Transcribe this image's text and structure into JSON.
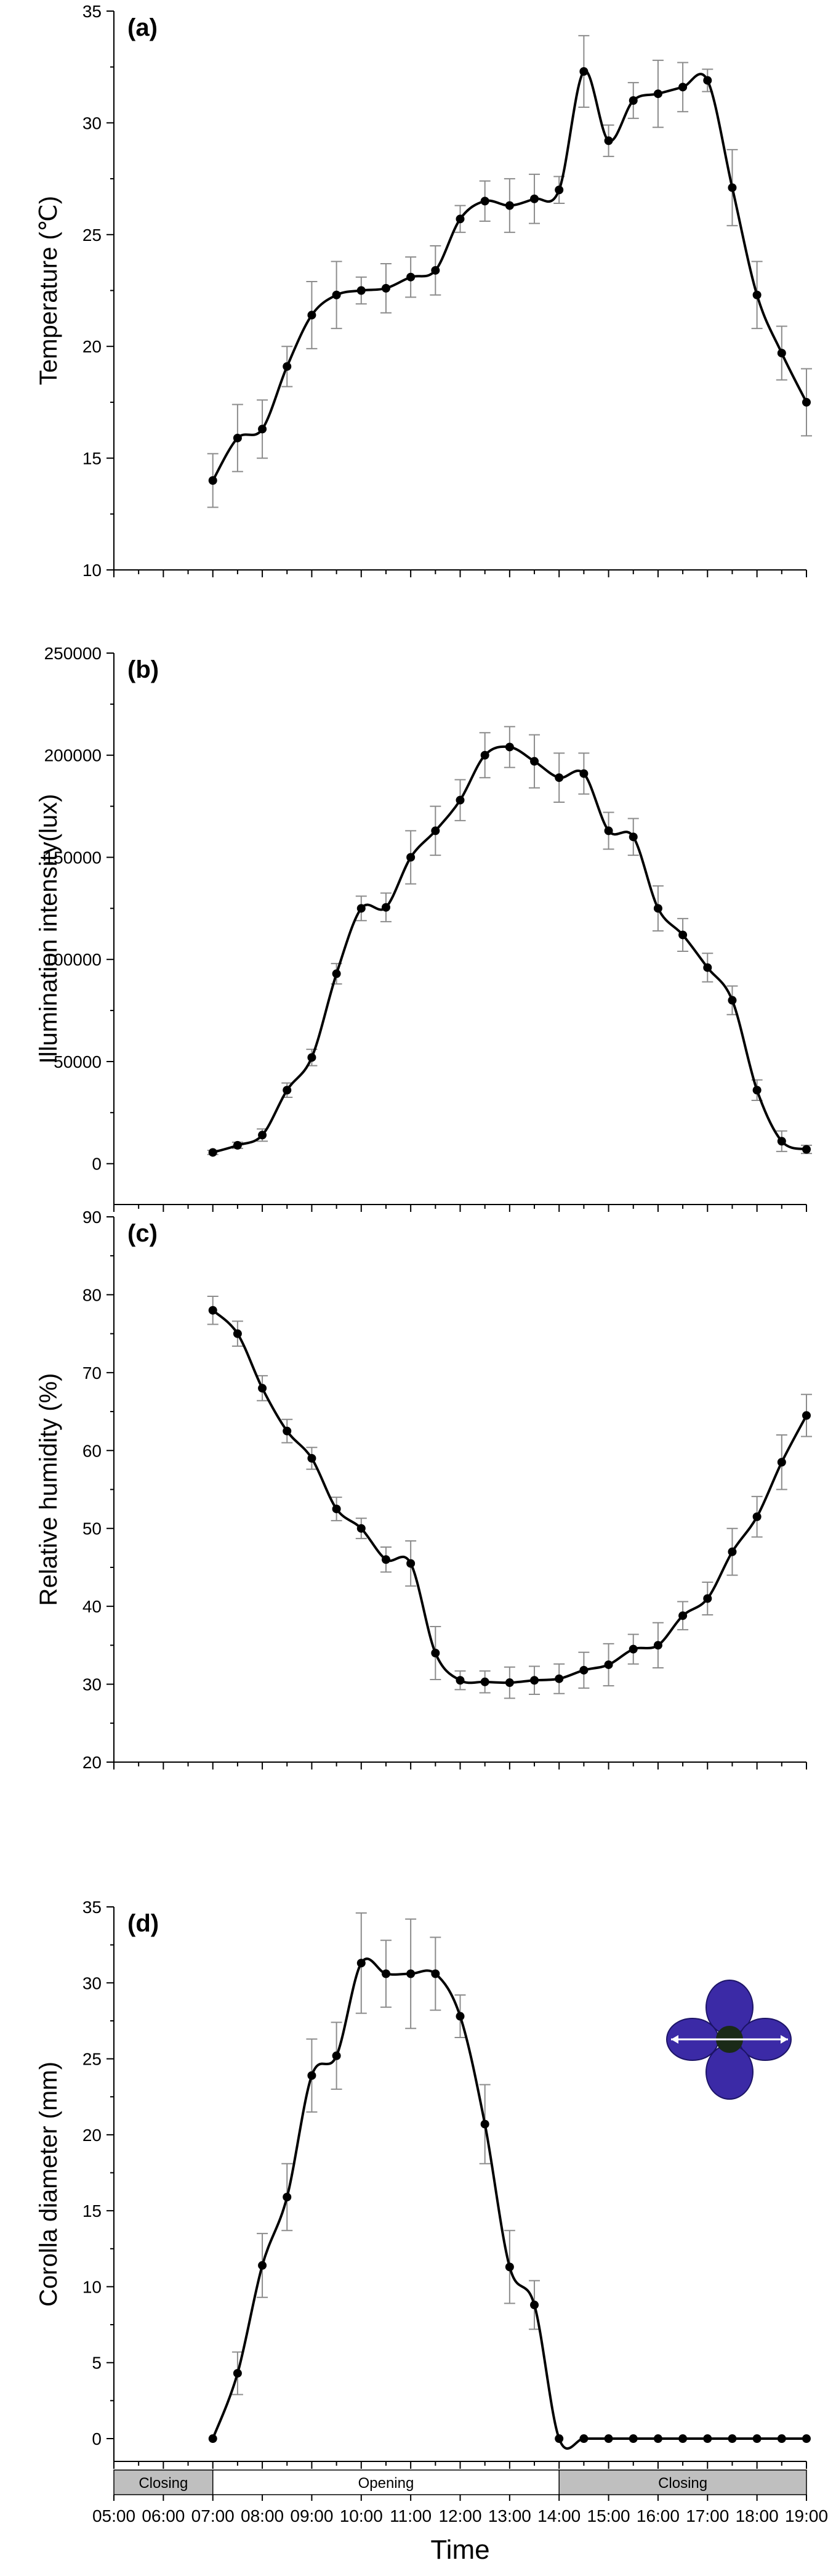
{
  "chart_data": [
    {
      "type": "line",
      "panel_label": "(a)",
      "ylabel": "Temperature (℃)",
      "ylim": [
        10,
        35
      ],
      "yticks": [
        10,
        15,
        20,
        25,
        30,
        35
      ],
      "xlim": [
        "05:00",
        "19:00"
      ],
      "x": [
        "07:00",
        "07:30",
        "08:00",
        "08:30",
        "09:00",
        "09:30",
        "10:00",
        "10:30",
        "11:00",
        "11:30",
        "12:00",
        "12:30",
        "13:00",
        "13:30",
        "14:00",
        "14:30",
        "15:00",
        "15:30",
        "16:00",
        "16:30",
        "17:00",
        "17:30",
        "18:00",
        "18:30",
        "19:00"
      ],
      "series": [
        {
          "values": [
            14.0,
            15.9,
            16.3,
            19.1,
            21.4,
            22.3,
            22.5,
            22.6,
            23.1,
            23.4,
            25.7,
            26.5,
            26.3,
            26.6,
            27.0,
            32.3,
            29.2,
            31.0,
            31.3,
            31.6,
            31.9,
            27.1,
            22.3,
            19.7,
            17.5
          ],
          "errors": [
            1.2,
            1.5,
            1.3,
            0.9,
            1.5,
            1.5,
            0.6,
            1.1,
            0.9,
            1.1,
            0.6,
            0.9,
            1.2,
            1.1,
            0.6,
            1.6,
            0.7,
            0.8,
            1.5,
            1.1,
            0.5,
            1.7,
            1.5,
            1.2,
            1.5
          ]
        }
      ],
      "grid": false
    },
    {
      "type": "line",
      "panel_label": "(b)",
      "ylabel": "Illumination intensity(lux)",
      "ylim": [
        -20000,
        250000
      ],
      "yticks": [
        0,
        50000,
        100000,
        150000,
        200000,
        250000
      ],
      "xlim": [
        "05:00",
        "19:00"
      ],
      "x": [
        "07:00",
        "07:30",
        "08:00",
        "08:30",
        "09:00",
        "09:30",
        "10:00",
        "10:30",
        "11:00",
        "11:30",
        "12:00",
        "12:30",
        "13:00",
        "13:30",
        "14:00",
        "14:30",
        "15:00",
        "15:30",
        "16:00",
        "16:30",
        "17:00",
        "17:30",
        "18:00",
        "18:30",
        "19:00"
      ],
      "series": [
        {
          "values": [
            5500,
            9000,
            14000,
            36000,
            52000,
            93000,
            125000,
            125500,
            150000,
            163000,
            178000,
            200000,
            204000,
            197000,
            189000,
            191000,
            163000,
            160000,
            125000,
            112000,
            96000,
            80000,
            36000,
            11000,
            7000
          ],
          "errors": [
            1000,
            1500,
            3000,
            3500,
            4000,
            5000,
            6000,
            7000,
            13000,
            12000,
            10000,
            11000,
            10000,
            13000,
            12000,
            10000,
            9000,
            9000,
            11000,
            8000,
            7000,
            7000,
            5000,
            5000,
            2000
          ]
        }
      ],
      "grid": false
    },
    {
      "type": "line",
      "panel_label": "(c)",
      "ylabel": "Relative humidity (%)",
      "ylim": [
        20,
        90
      ],
      "yticks": [
        20,
        30,
        40,
        50,
        60,
        70,
        80,
        90
      ],
      "xlim": [
        "05:00",
        "19:00"
      ],
      "x": [
        "07:00",
        "07:30",
        "08:00",
        "08:30",
        "09:00",
        "09:30",
        "10:00",
        "10:30",
        "11:00",
        "11:30",
        "12:00",
        "12:30",
        "13:00",
        "13:30",
        "14:00",
        "14:30",
        "15:00",
        "15:30",
        "16:00",
        "16:30",
        "17:00",
        "17:30",
        "18:00",
        "18:30",
        "19:00"
      ],
      "series": [
        {
          "values": [
            78.0,
            75.0,
            68.0,
            62.5,
            59.0,
            52.5,
            50.0,
            46.0,
            45.5,
            34.0,
            30.5,
            30.3,
            30.2,
            30.5,
            30.7,
            31.8,
            32.5,
            34.5,
            35.0,
            38.8,
            41.0,
            47.0,
            51.5,
            58.5,
            64.5
          ],
          "errors": [
            1.8,
            1.6,
            1.6,
            1.5,
            1.4,
            1.5,
            1.3,
            1.6,
            2.9,
            3.4,
            1.2,
            1.4,
            2.0,
            1.8,
            1.9,
            2.3,
            2.7,
            1.9,
            2.9,
            1.8,
            2.1,
            3.0,
            2.6,
            3.5,
            2.7
          ]
        }
      ],
      "grid": false
    },
    {
      "type": "line",
      "panel_label": "(d)",
      "ylabel": "Corolla diameter (mm)",
      "ylim": [
        -1.5,
        35
      ],
      "yticks": [
        0,
        5,
        10,
        15,
        20,
        25,
        30,
        35
      ],
      "xlabel": "Time",
      "xlim": [
        "05:00",
        "19:00"
      ],
      "xticks": [
        "05:00",
        "06:00",
        "07:00",
        "08:00",
        "09:00",
        "10:00",
        "11:00",
        "12:00",
        "13:00",
        "14:00",
        "15:00",
        "16:00",
        "17:00",
        "18:00",
        "19:00"
      ],
      "x": [
        "07:00",
        "07:30",
        "08:00",
        "08:30",
        "09:00",
        "09:30",
        "10:00",
        "10:30",
        "11:00",
        "11:30",
        "12:00",
        "12:30",
        "13:00",
        "13:30",
        "14:00",
        "14:30",
        "15:00",
        "15:30",
        "16:00",
        "16:30",
        "17:00",
        "17:30",
        "18:00",
        "18:30",
        "19:00"
      ],
      "series": [
        {
          "values": [
            0,
            4.3,
            11.4,
            15.9,
            23.9,
            25.2,
            31.3,
            30.6,
            30.6,
            30.6,
            27.8,
            20.7,
            11.3,
            8.8,
            0,
            0,
            0,
            0,
            0,
            0,
            0,
            0,
            0,
            0,
            0
          ],
          "errors": [
            0,
            1.4,
            2.1,
            2.2,
            2.4,
            2.2,
            3.3,
            2.2,
            3.6,
            2.4,
            1.4,
            2.6,
            2.4,
            1.6,
            0,
            0,
            0,
            0,
            0,
            0,
            0,
            0,
            0,
            0,
            0
          ]
        }
      ],
      "phases": [
        {
          "label": "Closing",
          "start": "05:00",
          "end": "07:00",
          "color": "#bfbfbf"
        },
        {
          "label": "Opening",
          "start": "07:00",
          "end": "14:00",
          "color": "#ffffff"
        },
        {
          "label": "Closing",
          "start": "14:00",
          "end": "19:00",
          "color": "#bfbfbf"
        }
      ],
      "grid": false
    }
  ],
  "colors": {
    "line": "#000000",
    "error_bar": "#8c8c8c",
    "closing_band": "#bfbfbf",
    "flower_petal": "#3b2aa6",
    "flower_center": "#1a2a18"
  }
}
